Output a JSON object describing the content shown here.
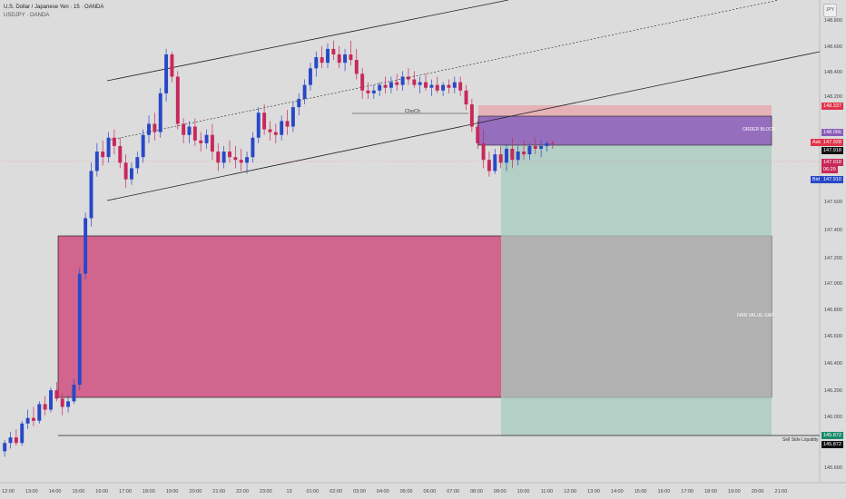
{
  "header": {
    "symbol_title": "U.S. Dollar / Japanese Yen · 15 · OANDA",
    "symbol_sub": "USDJPY · OANDA"
  },
  "toolbar": {
    "scale_button": "JPY"
  },
  "price_axis": {
    "labels": [
      "148.800",
      "148.600",
      "148.400",
      "148.200",
      "147.600",
      "147.400",
      "147.200",
      "147.000",
      "146.800",
      "146.600",
      "146.400",
      "146.200",
      "146.000",
      "145.600"
    ]
  },
  "time_axis": {
    "labels": [
      "12:00",
      "13:00",
      "14:00",
      "15:00",
      "16:00",
      "17:00",
      "18:00",
      "19:00",
      "20:00",
      "21:00",
      "22:00",
      "23:00",
      "13",
      "01:00",
      "02:00",
      "03:00",
      "04:00",
      "05:00",
      "06:00",
      "07:00",
      "08:00",
      "09:00",
      "10:00",
      "11:00",
      "12:00",
      "13:00",
      "14:00",
      "15:00",
      "16:00",
      "17:00",
      "18:00",
      "19:00",
      "20:00",
      "21:00"
    ]
  },
  "price_tags": {
    "stop": "148.337",
    "ob_top": "148.056",
    "ask_label": "Ask",
    "ask_value": "147.928",
    "last_value": "147.918",
    "countdown_price": "147.918",
    "countdown": "06:29",
    "bid_label": "Bid",
    "bid_value": "147.910",
    "ssl_top": "145.872",
    "ssl_bottom": "145.872"
  },
  "zones": {
    "order_block": "ORDER BLOCK",
    "fair_value_gap": "FAIR VALUE GAP",
    "sell_side_liquidity": "Sell Side Liquidity",
    "choch": "ChoCh"
  },
  "colors": {
    "up": "#2848c8",
    "down": "#c8285a",
    "fvg": "#d0507f",
    "order_block": "#8a5bb8",
    "stop_zone": "#e8a0a8",
    "target_zone": "#a7cbbf",
    "ask": "#e0344a",
    "bid": "#2848c8",
    "ssl": "#1a8a6a"
  },
  "chart_data": {
    "type": "candlestick",
    "symbol": "USDJPY",
    "timeframe": "15",
    "y_range": [
      145.5,
      148.9
    ],
    "candles": [
      [
        145.7,
        145.78,
        145.66,
        145.76
      ],
      [
        145.76,
        145.84,
        145.72,
        145.8
      ],
      [
        145.8,
        145.86,
        145.74,
        145.76
      ],
      [
        145.76,
        145.92,
        145.74,
        145.9
      ],
      [
        145.9,
        146.0,
        145.86,
        145.94
      ],
      [
        145.94,
        146.02,
        145.88,
        145.92
      ],
      [
        145.92,
        146.06,
        145.9,
        146.04
      ],
      [
        146.04,
        146.1,
        145.96,
        146.0
      ],
      [
        146.0,
        146.16,
        145.98,
        146.14
      ],
      [
        146.14,
        146.2,
        146.06,
        146.08
      ],
      [
        146.08,
        146.12,
        145.96,
        146.02
      ],
      [
        146.02,
        146.1,
        145.98,
        146.06
      ],
      [
        146.06,
        146.22,
        146.04,
        146.18
      ],
      [
        146.18,
        147.02,
        146.14,
        146.98
      ],
      [
        146.98,
        147.42,
        146.94,
        147.38
      ],
      [
        147.38,
        147.78,
        147.32,
        147.72
      ],
      [
        147.72,
        147.92,
        147.68,
        147.86
      ],
      [
        147.86,
        147.94,
        147.76,
        147.82
      ],
      [
        147.82,
        148.0,
        147.78,
        147.96
      ],
      [
        147.96,
        148.02,
        147.84,
        147.9
      ],
      [
        147.9,
        147.96,
        147.74,
        147.78
      ],
      [
        147.78,
        147.84,
        147.6,
        147.66
      ],
      [
        147.66,
        147.78,
        147.62,
        147.74
      ],
      [
        147.74,
        147.86,
        147.7,
        147.82
      ],
      [
        147.82,
        148.02,
        147.78,
        147.98
      ],
      [
        147.98,
        148.12,
        147.92,
        148.06
      ],
      [
        148.06,
        148.14,
        147.94,
        148.0
      ],
      [
        148.0,
        148.32,
        147.96,
        148.28
      ],
      [
        148.28,
        148.6,
        148.22,
        148.56
      ],
      [
        148.56,
        148.58,
        148.36,
        148.4
      ],
      [
        148.4,
        148.44,
        148.02,
        148.06
      ],
      [
        148.06,
        148.1,
        147.92,
        147.98
      ],
      [
        147.98,
        148.08,
        147.92,
        148.04
      ],
      [
        148.04,
        148.1,
        147.9,
        147.94
      ],
      [
        147.94,
        148.0,
        147.86,
        147.92
      ],
      [
        147.92,
        148.02,
        147.88,
        147.98
      ],
      [
        147.98,
        148.06,
        147.8,
        147.86
      ],
      [
        147.86,
        147.92,
        147.72,
        147.78
      ],
      [
        147.78,
        147.9,
        147.74,
        147.86
      ],
      [
        147.86,
        147.94,
        147.78,
        147.82
      ],
      [
        147.82,
        147.9,
        147.74,
        147.8
      ],
      [
        147.8,
        147.88,
        147.72,
        147.78
      ],
      [
        147.78,
        147.86,
        147.7,
        147.82
      ],
      [
        147.82,
        148.0,
        147.78,
        147.96
      ],
      [
        147.96,
        148.18,
        147.92,
        148.14
      ],
      [
        148.14,
        148.2,
        147.98,
        148.02
      ],
      [
        148.02,
        148.08,
        147.94,
        148.0
      ],
      [
        148.0,
        148.06,
        147.92,
        147.98
      ],
      [
        147.98,
        148.12,
        147.94,
        148.08
      ],
      [
        148.08,
        148.16,
        147.98,
        148.04
      ],
      [
        148.04,
        148.22,
        148.0,
        148.18
      ],
      [
        148.18,
        148.28,
        148.12,
        148.24
      ],
      [
        148.24,
        148.38,
        148.2,
        148.34
      ],
      [
        148.34,
        148.5,
        148.3,
        148.46
      ],
      [
        148.46,
        148.58,
        148.4,
        148.54
      ],
      [
        148.54,
        148.62,
        148.46,
        148.5
      ],
      [
        148.5,
        148.64,
        148.46,
        148.6
      ],
      [
        148.6,
        148.66,
        148.52,
        148.56
      ],
      [
        148.56,
        148.62,
        148.46,
        148.5
      ],
      [
        148.5,
        148.6,
        148.44,
        148.56
      ],
      [
        148.56,
        148.66,
        148.48,
        148.52
      ],
      [
        148.52,
        148.6,
        148.38,
        148.42
      ],
      [
        148.42,
        148.46,
        148.24,
        148.3
      ],
      [
        148.3,
        148.36,
        148.24,
        148.28
      ],
      [
        148.28,
        148.34,
        148.24,
        148.3
      ],
      [
        148.3,
        148.36,
        148.26,
        148.34
      ],
      [
        148.34,
        148.4,
        148.28,
        148.32
      ],
      [
        148.32,
        148.4,
        148.28,
        148.36
      ],
      [
        148.36,
        148.42,
        148.3,
        148.34
      ],
      [
        148.34,
        148.44,
        148.3,
        148.4
      ],
      [
        148.4,
        148.46,
        148.34,
        148.38
      ],
      [
        148.38,
        148.44,
        148.32,
        148.34
      ],
      [
        148.34,
        148.4,
        148.28,
        148.36
      ],
      [
        148.36,
        148.42,
        148.3,
        148.32
      ],
      [
        148.32,
        148.38,
        148.26,
        148.34
      ],
      [
        148.34,
        148.4,
        148.28,
        148.3
      ],
      [
        148.3,
        148.36,
        148.26,
        148.34
      ],
      [
        148.34,
        148.38,
        148.28,
        148.32
      ],
      [
        148.32,
        148.4,
        148.28,
        148.36
      ],
      [
        148.36,
        148.4,
        148.26,
        148.3
      ],
      [
        148.3,
        148.34,
        148.16,
        148.2
      ],
      [
        148.2,
        148.24,
        148.0,
        148.04
      ],
      [
        148.04,
        148.08,
        147.88,
        147.92
      ],
      [
        147.92,
        148.02,
        147.74,
        147.8
      ],
      [
        147.8,
        147.86,
        147.68,
        147.72
      ],
      [
        147.72,
        147.88,
        147.7,
        147.84
      ],
      [
        147.84,
        147.9,
        147.74,
        147.78
      ],
      [
        147.78,
        147.92,
        147.72,
        147.88
      ],
      [
        147.88,
        147.96,
        147.74,
        147.8
      ],
      [
        147.8,
        147.9,
        147.76,
        147.86
      ],
      [
        147.86,
        147.94,
        147.8,
        147.84
      ],
      [
        147.84,
        147.92,
        147.8,
        147.9
      ],
      [
        147.9,
        147.96,
        147.84,
        147.88
      ],
      [
        147.88,
        147.94,
        147.82,
        147.9
      ],
      [
        147.9,
        147.94,
        147.86,
        147.92
      ],
      [
        147.92,
        147.94,
        147.88,
        147.918
      ]
    ],
    "levels": {
      "stop_zone": [
        148.056,
        148.337
      ],
      "order_block": [
        147.918,
        148.056
      ],
      "target_zone": [
        145.872,
        147.918
      ],
      "fair_value_gap": [
        146.198,
        147.36
      ],
      "sell_side_liquidity": 145.872
    },
    "legend": "none",
    "grid": false
  }
}
